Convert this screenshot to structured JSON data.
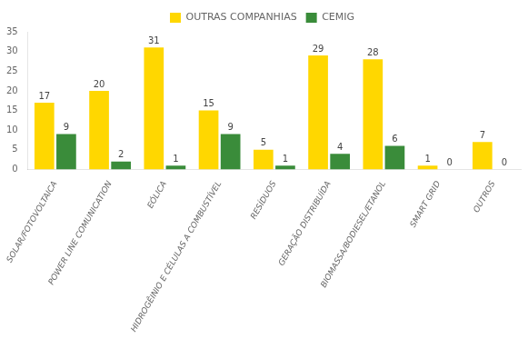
{
  "chart_data": {
    "type": "bar",
    "categories": [
      "SOLAR/FOTOVOLTAICA",
      "POWER LINE COMUNICATION",
      "EÓLICA",
      "HIDROGÊINIO E CÉLULAS A COMBUSTÍVEL",
      "RESÍDUOS",
      "GERAÇÃO DISTRIBUÍDA",
      "BIOMASSA/BODIESEL/ETANOL",
      "SMART GRID",
      "OUTROS"
    ],
    "series": [
      {
        "name": "OUTRAS COMPANHIAS",
        "color": "#FFD700",
        "values": [
          17,
          20,
          31,
          15,
          5,
          29,
          28,
          1,
          7
        ]
      },
      {
        "name": "CEMIG",
        "color": "#3A8C3A",
        "values": [
          9,
          2,
          1,
          9,
          1,
          4,
          6,
          0,
          0
        ]
      }
    ],
    "ylim": [
      0,
      35
    ],
    "yticks": [
      0,
      5,
      10,
      15,
      20,
      25,
      30,
      35
    ],
    "grid": false,
    "legend": "top",
    "data_labels": true
  }
}
